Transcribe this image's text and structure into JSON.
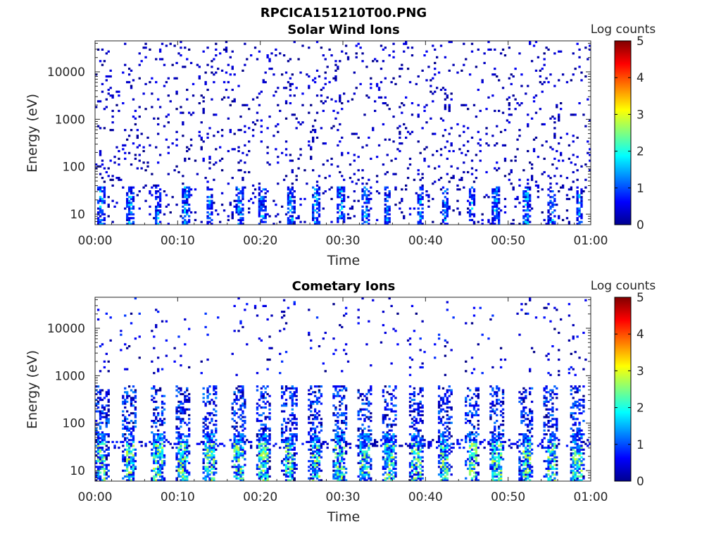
{
  "figure": {
    "title": "RPCICA151210T00.PNG"
  },
  "chart_data": [
    {
      "type": "heatmap",
      "title": "Solar Wind Ions",
      "xlabel": "Time",
      "ylabel": "Energy (eV)",
      "x_ticks": [
        "00:00",
        "00:10",
        "00:20",
        "00:30",
        "00:40",
        "00:50",
        "01:00"
      ],
      "x_range_minutes": [
        0,
        60
      ],
      "y_scale": "log",
      "y_ticks": [
        "10",
        "100",
        "1000",
        "10000"
      ],
      "y_tick_values": [
        10,
        100,
        1000,
        10000
      ],
      "y_range": [
        6,
        45000
      ],
      "colorbar": {
        "label": "Log counts",
        "range": [
          0,
          5
        ],
        "ticks": [
          "0",
          "1",
          "2",
          "3",
          "4",
          "5"
        ],
        "colormap": "jet"
      },
      "bursts_minutes": [
        0.7,
        4.2,
        7.6,
        11.0,
        13.9,
        17.5,
        20.3,
        23.7,
        26.7,
        29.8,
        32.8,
        35.4,
        39.4,
        42.4,
        45.6,
        48.5,
        52.2,
        55.2,
        58.6
      ],
      "background_max_log_counts": 0.6,
      "peak_log_counts": 1.9
    },
    {
      "type": "heatmap",
      "title": "Cometary Ions",
      "xlabel": "Time",
      "ylabel": "Energy (eV)",
      "x_ticks": [
        "00:00",
        "00:10",
        "00:20",
        "00:30",
        "00:40",
        "00:50",
        "01:00"
      ],
      "x_range_minutes": [
        0,
        60
      ],
      "y_scale": "log",
      "y_ticks": [
        "10",
        "100",
        "1000",
        "10000"
      ],
      "y_tick_values": [
        10,
        100,
        1000,
        10000
      ],
      "y_range": [
        6,
        45000
      ],
      "colorbar": {
        "label": "Log counts",
        "range": [
          0,
          5
        ],
        "ticks": [
          "0",
          "1",
          "2",
          "3",
          "4",
          "5"
        ],
        "colormap": "jet"
      },
      "bursts_minutes": [
        0.8,
        4.2,
        7.6,
        10.6,
        13.9,
        17.4,
        20.4,
        23.5,
        26.7,
        29.6,
        32.6,
        35.6,
        38.9,
        42.3,
        45.7,
        48.6,
        52.2,
        55.2,
        58.4
      ],
      "peak_log_counts": 3.0,
      "band_energy_ev": [
        10,
        40
      ]
    }
  ]
}
